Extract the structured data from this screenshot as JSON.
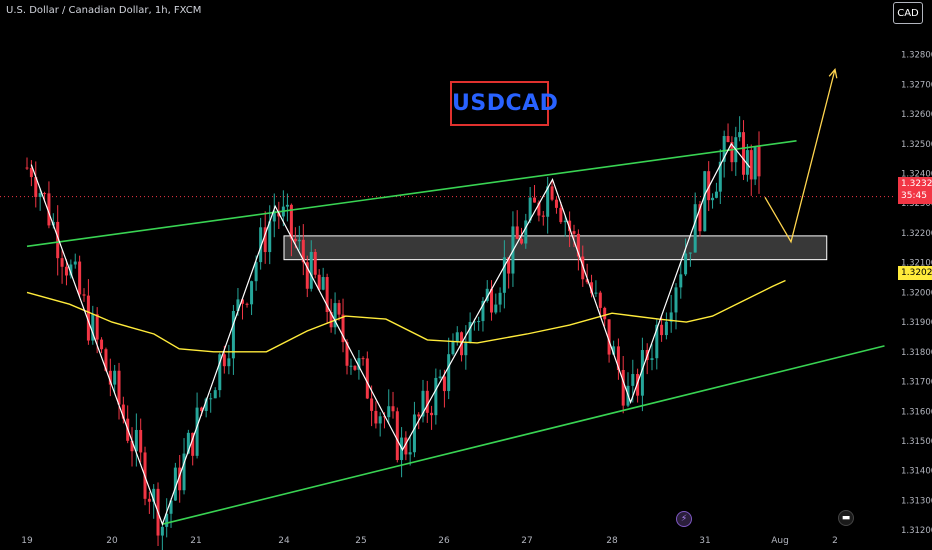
{
  "header": {
    "symbol_description": "U.S. Dollar / Canadian Dollar, 1h, FXCM",
    "currency_button": "CAD"
  },
  "annotation": {
    "badge_text": "USDCAD",
    "badge_color": "#2962ff",
    "badge_border_color": "#e0312e"
  },
  "price_tags": {
    "last_price": "1.32322",
    "countdown": "35:45",
    "ma_value": "1.32023"
  },
  "events": [
    {
      "icon": "lightning-icon"
    },
    {
      "icon": "us-flag-icon"
    }
  ],
  "colors": {
    "up": "#26a69a",
    "down": "#f23645",
    "ma": "#ffeb3b",
    "channel": "#39d353",
    "zigzag": "#ffffff",
    "projection": "#ffd54f"
  },
  "chart_data": {
    "type": "candlestick",
    "title": "U.S. Dollar / Canadian Dollar, 1h, FXCM",
    "y_ticks": [
      "1.32800",
      "1.32700",
      "1.32600",
      "1.32500",
      "1.32400",
      "1.32300",
      "1.32200",
      "1.32100",
      "1.32000",
      "1.31900",
      "1.31800",
      "1.31700",
      "1.31600",
      "1.31500",
      "1.31400",
      "1.31300",
      "1.31200"
    ],
    "x_ticks": [
      "19",
      "20",
      "21",
      "24",
      "25",
      "26",
      "27",
      "28",
      "31",
      "Aug",
      "2"
    ],
    "ylim": [
      1.3115,
      1.3295
    ],
    "moving_average": [
      {
        "x": 0,
        "y": 1.32
      },
      {
        "x": 0.5,
        "y": 1.3196
      },
      {
        "x": 1.0,
        "y": 1.319
      },
      {
        "x": 1.5,
        "y": 1.3186
      },
      {
        "x": 1.8,
        "y": 1.3181
      },
      {
        "x": 2.2,
        "y": 1.318
      },
      {
        "x": 2.8,
        "y": 1.318
      },
      {
        "x": 3.3,
        "y": 1.3187
      },
      {
        "x": 3.8,
        "y": 1.3192
      },
      {
        "x": 4.3,
        "y": 1.3191
      },
      {
        "x": 4.8,
        "y": 1.3184
      },
      {
        "x": 5.4,
        "y": 1.3183
      },
      {
        "x": 6.0,
        "y": 1.3186
      },
      {
        "x": 6.5,
        "y": 1.3189
      },
      {
        "x": 7.0,
        "y": 1.3193
      },
      {
        "x": 7.5,
        "y": 1.3191
      },
      {
        "x": 7.8,
        "y": 1.319
      },
      {
        "x": 8.1,
        "y": 1.3192
      },
      {
        "x": 8.5,
        "y": 1.3197
      },
      {
        "x": 8.9,
        "y": 1.3202
      },
      {
        "x": 9.1,
        "y": 1.3204
      }
    ],
    "channel_upper": [
      {
        "x": 0,
        "y": 1.32155
      },
      {
        "x": 9.3,
        "y": 1.3251
      }
    ],
    "channel_lower": [
      {
        "x": 1.6,
        "y": 1.3122
      },
      {
        "x": 10.9,
        "y": 1.3182
      }
    ],
    "zigzag": [
      {
        "x": 0.05,
        "y": 1.3243
      },
      {
        "x": 1.6,
        "y": 1.3122
      },
      {
        "x": 2.9,
        "y": 1.3229
      },
      {
        "x": 4.5,
        "y": 1.3147
      },
      {
        "x": 6.3,
        "y": 1.3238
      },
      {
        "x": 7.2,
        "y": 1.3163
      },
      {
        "x": 8.0,
        "y": 1.3233
      },
      {
        "x": 8.35,
        "y": 1.325
      },
      {
        "x": 8.6,
        "y": 1.3242
      }
    ],
    "projection": [
      {
        "x": 8.8,
        "y": 1.3232
      },
      {
        "x": 9.2,
        "y": 1.3217
      },
      {
        "x": 10.0,
        "y": 1.3275
      }
    ],
    "supply_zone": {
      "x_from": 3.0,
      "x_to": 9.85,
      "y_from": 1.3211,
      "y_to": 1.3219
    },
    "last_price_line": 1.32322,
    "candle_seed": 7
  }
}
